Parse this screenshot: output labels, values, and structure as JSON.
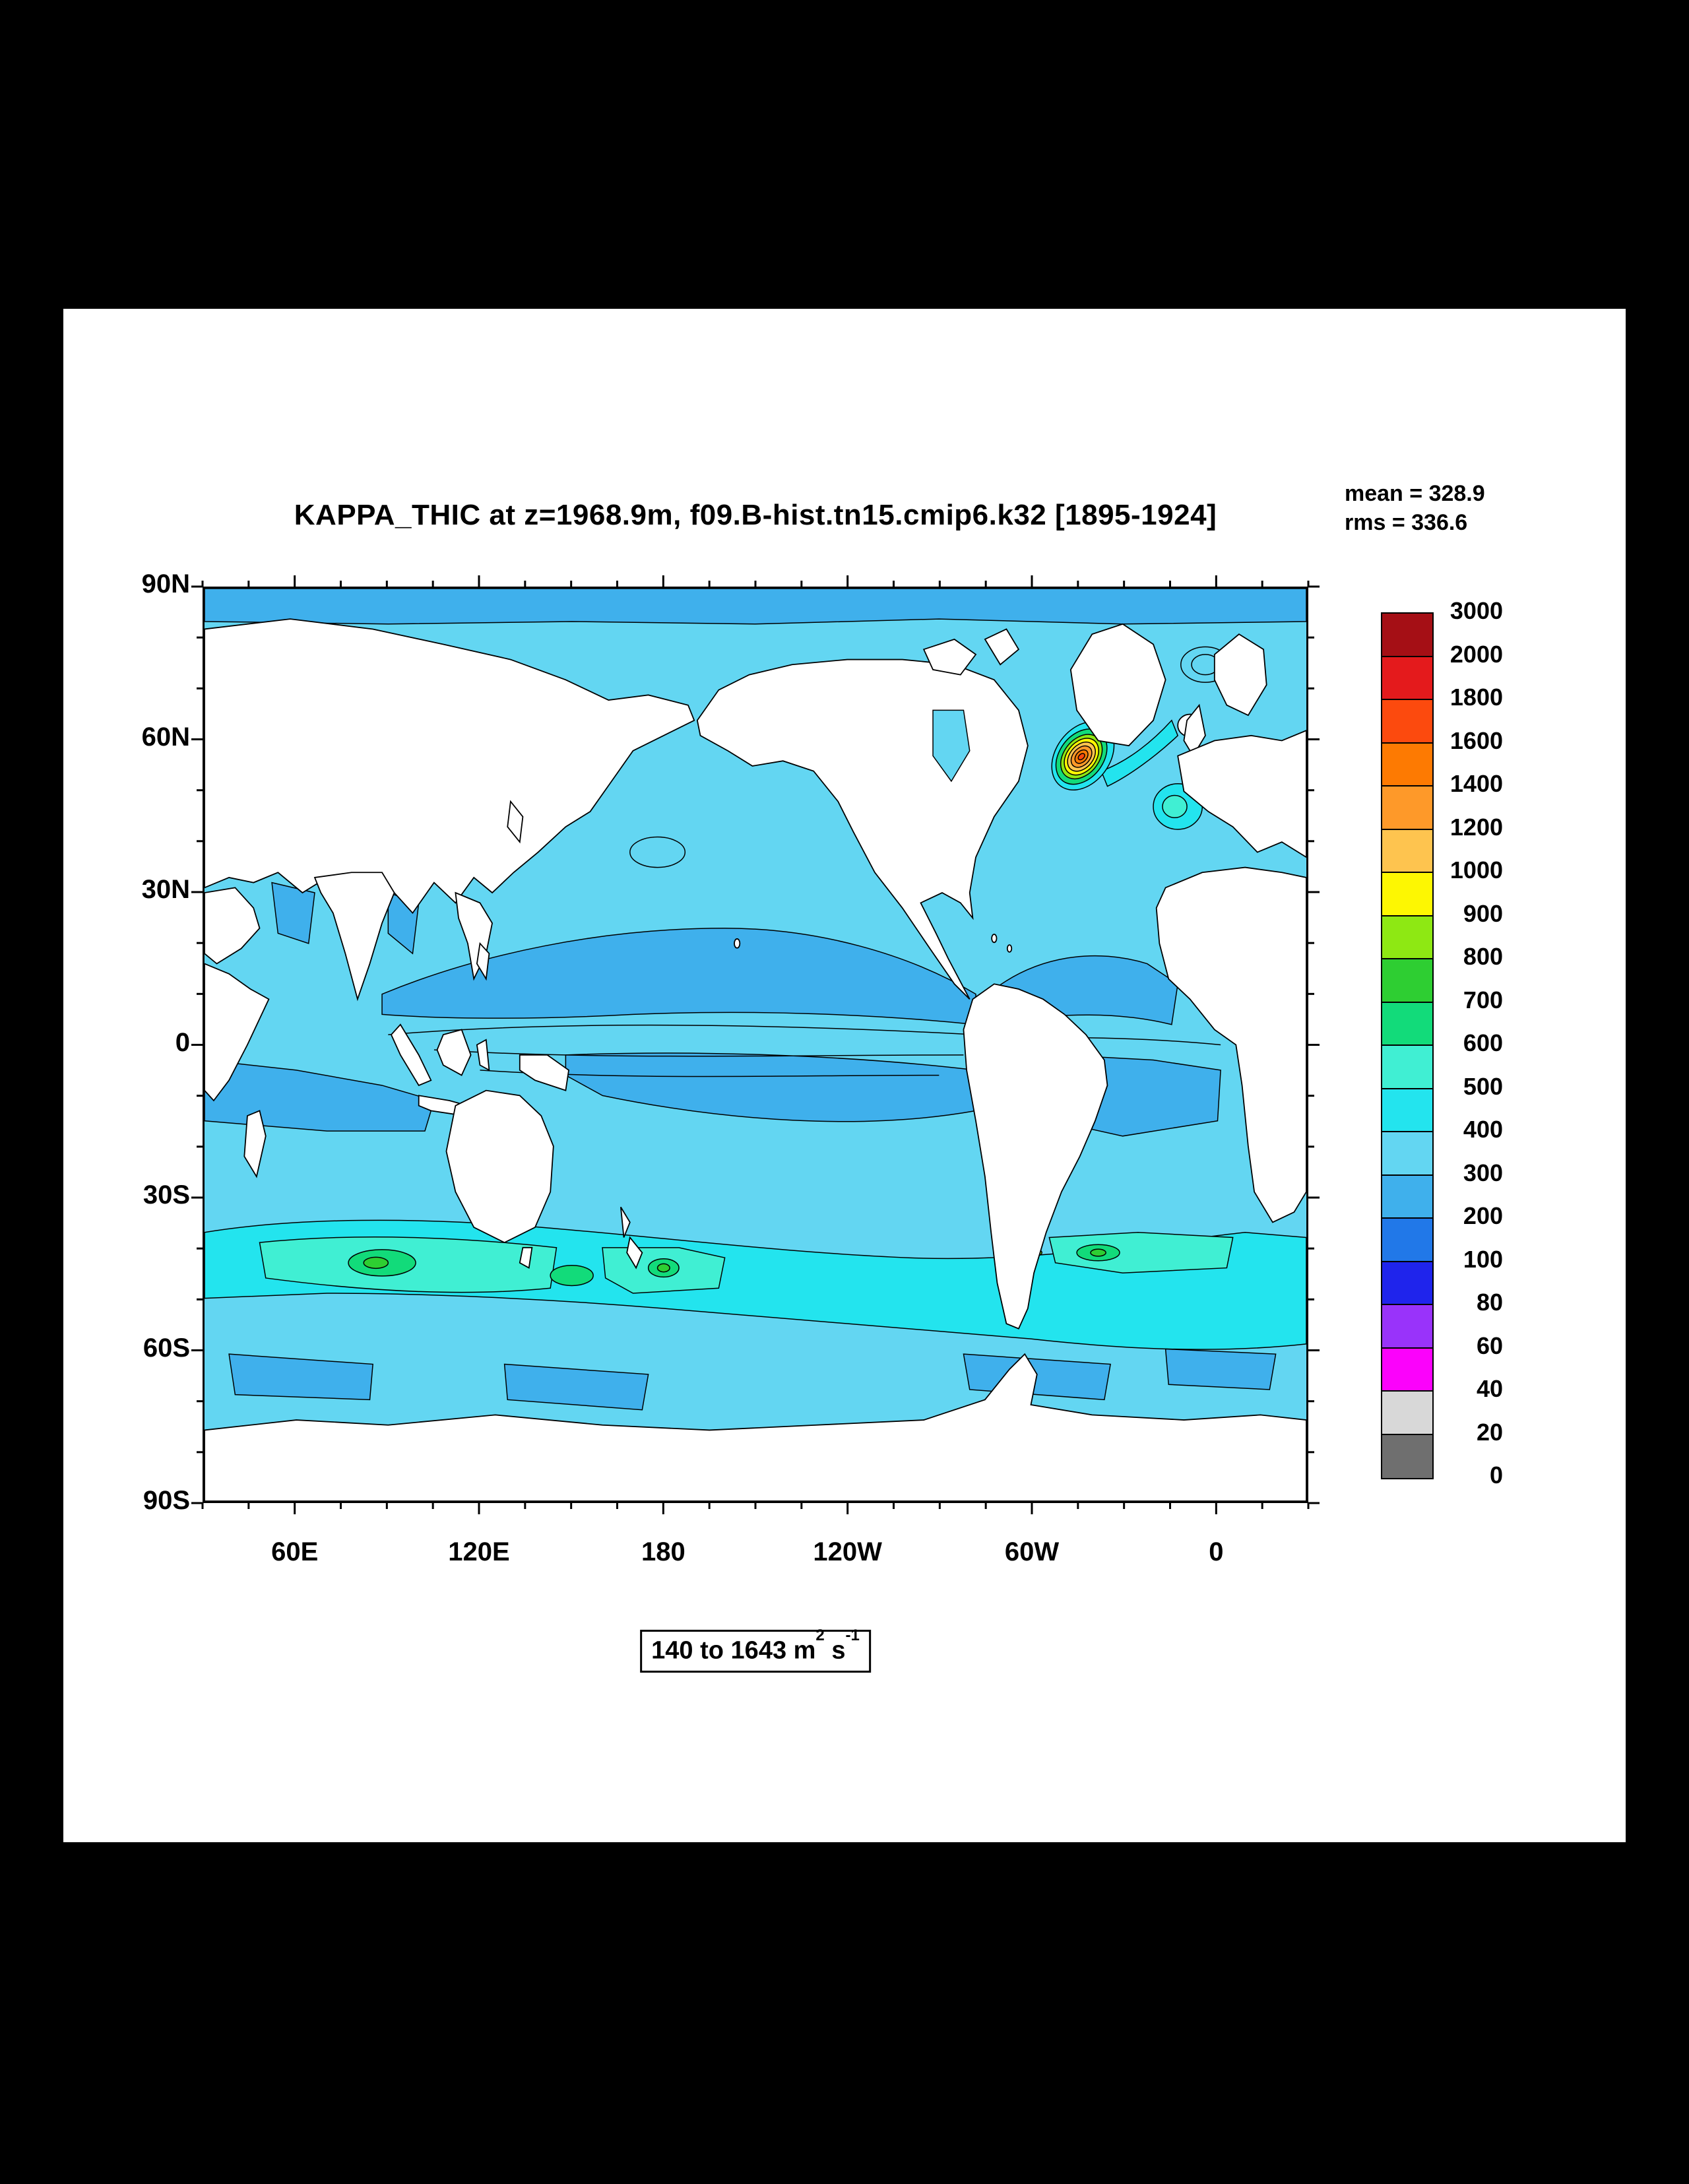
{
  "window": {
    "background": "#000000",
    "page_background": "#FFFFFF"
  },
  "header": {
    "title": "KAPPA_THIC at z=1968.9m, f09.B-hist.tn15.cmip6.k32 [1895-1924]",
    "mean_label": "mean = 328.9",
    "rms_label": "rms = 336.6"
  },
  "axes": {
    "y_tick_labels": [
      "90N",
      "60N",
      "30N",
      "0",
      "30S",
      "60S",
      "90S"
    ],
    "x_tick_labels": [
      "60E",
      "120E",
      "180",
      "120W",
      "60W",
      "0"
    ]
  },
  "colorbar": {
    "labels_top_to_bottom": [
      "3000",
      "2000",
      "1800",
      "1600",
      "1400",
      "1200",
      "1000",
      "900",
      "800",
      "700",
      "600",
      "500",
      "400",
      "300",
      "200",
      "100",
      "80",
      "60",
      "40",
      "20",
      "0"
    ],
    "levels_bottom_to_top": [
      0,
      20,
      40,
      60,
      80,
      100,
      200,
      300,
      400,
      500,
      600,
      700,
      800,
      900,
      1000,
      1200,
      1400,
      1600,
      1800,
      2000,
      3000
    ],
    "colors_top_to_bottom": [
      "#A50F15",
      "#E41A1C",
      "#FC4A0E",
      "#FD7A02",
      "#FE9929",
      "#FEC44F",
      "#FDF702",
      "#8EE813",
      "#2ECE32",
      "#12DB7A",
      "#40EFD3",
      "#23E4EE",
      "#63D6F2",
      "#3FB0EC",
      "#2178E8",
      "#1F24EC",
      "#9933FA",
      "#FB02FB",
      "#D8D8D8",
      "#6F6F6F"
    ]
  },
  "footer": {
    "range_prefix": "140 to 1643 m",
    "range_sup1": "2",
    "range_mid": " s",
    "range_sup2": "-1"
  },
  "chart_data": {
    "type": "filled-contour-map",
    "title": "KAPPA_THIC at z=1968.9m, f09.B-hist.tn15.cmip6.k32 [1895-1924]",
    "variable": "KAPPA_THIC",
    "depth": "z=1968.9m",
    "case_id": "f09.B-hist.tn15.cmip6.k32",
    "years": "1895-1924",
    "units": "m2 s-1",
    "statistics": {
      "mean": 328.9,
      "rms": 336.6
    },
    "data_range": {
      "min": 140,
      "max": 1643
    },
    "projection": "cylindrical equidistant, Pacific-centered, longitude 30E to 390E",
    "x_axis": {
      "tick_labels": [
        "60E",
        "120E",
        "180",
        "120W",
        "60W",
        "0"
      ],
      "lon_range": [
        30,
        390
      ]
    },
    "y_axis": {
      "tick_labels": [
        "90N",
        "60N",
        "30N",
        "0",
        "30S",
        "60S",
        "90S"
      ],
      "lat_range": [
        -90,
        90
      ]
    },
    "contour_levels": [
      0,
      20,
      40,
      60,
      80,
      100,
      200,
      300,
      400,
      500,
      600,
      700,
      800,
      900,
      1000,
      1200,
      1400,
      1600,
      1800,
      2000,
      3000
    ],
    "legend_position": "right",
    "land_mask_color": "#FFFFFF",
    "notable_features": [
      {
        "region": "most open ocean interior",
        "value_band": "300-400"
      },
      {
        "region": "tropical Pacific, tropical Atlantic and south Indian bands; Arctic margin; parts of 55-65S",
        "value_band": "200-300"
      },
      {
        "region": "Southern Ocean 40-55S circumpolar band",
        "value_band": "400-600 with 600-800 green cores"
      },
      {
        "region": "subpolar North Atlantic south of Greenland (Labrador Sea)",
        "value_band": "concentric maximum 600 to 1643, orange core"
      },
      {
        "region": "northeast Atlantic west of Europe",
        "value_band": "400-600 patch"
      }
    ]
  }
}
